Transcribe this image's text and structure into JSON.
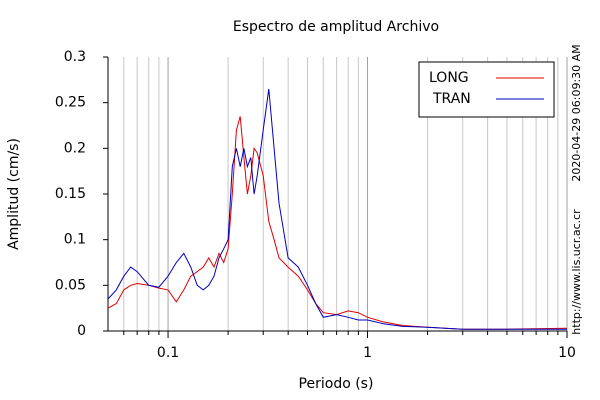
{
  "chart_data": {
    "type": "line",
    "title": "Espectro de amplitud Archivo",
    "xlabel": "Periodo (s)",
    "ylabel": "Amplitud (cm/s)",
    "annotations": [
      "2020-04-29 06:09:30 AM",
      "http://www.lis.ucr.ac.cr"
    ],
    "xscale": "log",
    "xlim": [
      0.05,
      10
    ],
    "xticks": [
      0.1,
      1,
      10
    ],
    "xminor": [
      0.06,
      0.07,
      0.08,
      0.09,
      0.2,
      0.3,
      0.4,
      0.5,
      0.6,
      0.7,
      0.8,
      0.9,
      2,
      3,
      4,
      5,
      6,
      7,
      8,
      9
    ],
    "ylim": [
      0,
      0.3
    ],
    "yticks": [
      0,
      0.05,
      0.1,
      0.15,
      0.2,
      0.25,
      0.3
    ],
    "grid": "x",
    "legend": "upper right",
    "x": [
      0.05,
      0.055,
      0.06,
      0.065,
      0.07,
      0.08,
      0.09,
      0.1,
      0.11,
      0.12,
      0.13,
      0.14,
      0.15,
      0.16,
      0.17,
      0.18,
      0.19,
      0.2,
      0.21,
      0.22,
      0.23,
      0.24,
      0.25,
      0.26,
      0.27,
      0.28,
      0.3,
      0.32,
      0.34,
      0.36,
      0.4,
      0.45,
      0.5,
      0.55,
      0.6,
      0.7,
      0.8,
      0.9,
      1,
      1.2,
      1.5,
      2,
      3,
      5,
      10
    ],
    "series": [
      {
        "name": "LONG",
        "color": "#e00000",
        "values": [
          0.025,
          0.03,
          0.045,
          0.05,
          0.052,
          0.05,
          0.047,
          0.045,
          0.032,
          0.045,
          0.06,
          0.065,
          0.07,
          0.08,
          0.07,
          0.085,
          0.075,
          0.09,
          0.15,
          0.22,
          0.235,
          0.19,
          0.15,
          0.17,
          0.2,
          0.195,
          0.17,
          0.12,
          0.1,
          0.08,
          0.07,
          0.06,
          0.045,
          0.03,
          0.02,
          0.018,
          0.022,
          0.02,
          0.015,
          0.01,
          0.006,
          0.004,
          0.002,
          0.002,
          0.003
        ]
      },
      {
        "name": "TRAN",
        "color": "#0000c0",
        "values": [
          0.035,
          0.045,
          0.06,
          0.07,
          0.065,
          0.05,
          0.048,
          0.06,
          0.075,
          0.085,
          0.07,
          0.05,
          0.045,
          0.05,
          0.06,
          0.08,
          0.09,
          0.1,
          0.18,
          0.2,
          0.18,
          0.2,
          0.18,
          0.19,
          0.15,
          0.17,
          0.22,
          0.265,
          0.2,
          0.14,
          0.08,
          0.07,
          0.05,
          0.03,
          0.015,
          0.018,
          0.015,
          0.012,
          0.012,
          0.008,
          0.005,
          0.004,
          0.002,
          0.002,
          0.002
        ]
      }
    ]
  }
}
